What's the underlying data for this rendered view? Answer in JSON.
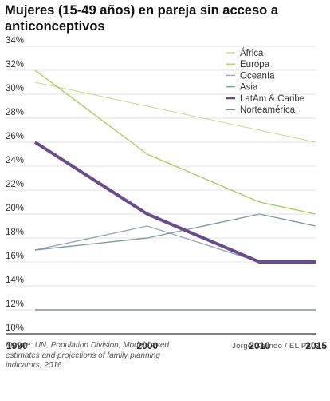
{
  "chart_data": {
    "type": "line",
    "title": "Mujeres (15-49 años) en pareja sin acceso a anticonceptivos",
    "x": [
      1990,
      2000,
      2010,
      2015
    ],
    "x_tick_labels": [
      "1990",
      "2000",
      "2010",
      "2015"
    ],
    "ylim": [
      10,
      34
    ],
    "y_ticks": [
      10,
      12,
      14,
      16,
      18,
      20,
      22,
      24,
      26,
      28,
      30,
      32,
      34
    ],
    "y_tick_labels": [
      "10%",
      "12%",
      "14%",
      "16%",
      "18%",
      "20%",
      "22%",
      "24%",
      "26%",
      "28%",
      "30%",
      "32%",
      "34%"
    ],
    "grid": "horizontal",
    "legend_position": "top-right",
    "series": [
      {
        "name": "África",
        "values": [
          31,
          29,
          27,
          26
        ],
        "color": "#c6dc86",
        "width": 1
      },
      {
        "name": "Europa",
        "values": [
          32,
          25,
          21,
          20
        ],
        "color": "#a6d05a",
        "width": 1.4
      },
      {
        "name": "Oceanía",
        "values": [
          17,
          19,
          16,
          16
        ],
        "color": "#9aa7b8",
        "width": 1.4
      },
      {
        "name": "Asia",
        "values": [
          17,
          18,
          20,
          19
        ],
        "color": "#7f9ca3",
        "width": 1.4
      },
      {
        "name": "LatAm & Caribe",
        "values": [
          26,
          20,
          16,
          16
        ],
        "color": "#6a4c8a",
        "width": 4
      },
      {
        "name": "Norteamérica",
        "values": [
          12,
          12,
          12,
          12
        ],
        "color": "#4a5a6e",
        "width": 1
      }
    ]
  },
  "footer": {
    "source": "Fuente: UN, Population Division, Model-based estimates and projections of family planning indicators, 2016.",
    "credit": "Jorge Galindo / EL PAIS"
  }
}
